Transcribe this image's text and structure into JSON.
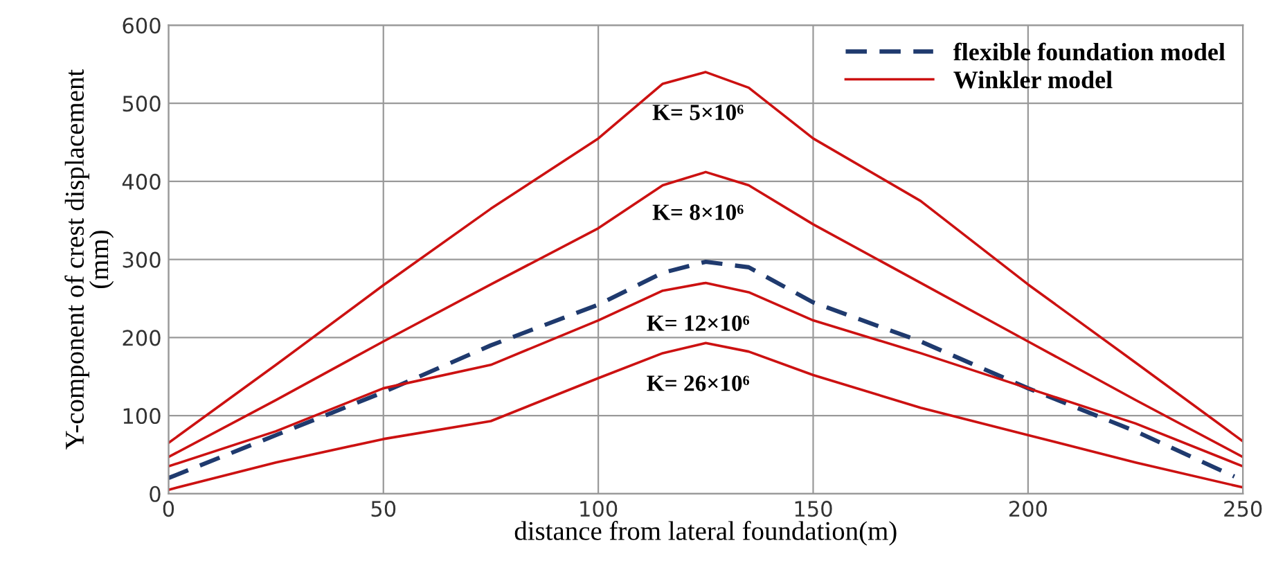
{
  "chart_data": {
    "type": "line",
    "xlabel": "distance from lateral foundation(m)",
    "ylabel": "Y-component of crest displacement\n(mm)",
    "xlim": [
      0,
      250
    ],
    "xticks": [
      0,
      50,
      100,
      150,
      200,
      250
    ],
    "ylim": [
      0,
      600
    ],
    "yticks": [
      0,
      100,
      200,
      300,
      400,
      500,
      600
    ],
    "grid": true,
    "legend": "top right",
    "series": [
      {
        "name": "flexible foundation model",
        "color": "#1f3a6e",
        "line_style": "dashed",
        "x": [
          0,
          25,
          50,
          75,
          100,
          115,
          125,
          135,
          150,
          175,
          200,
          225,
          248
        ],
        "values": [
          20,
          75,
          130,
          190,
          242,
          283,
          297,
          290,
          245,
          195,
          135,
          80,
          22
        ]
      },
      {
        "name": "Winkler model",
        "color": "#cc1111",
        "line_style": "solid",
        "x": [
          0,
          25,
          50,
          75,
          100,
          115,
          125,
          135,
          150,
          175,
          200,
          225,
          250
        ],
        "values": [
          65,
          165,
          267,
          365,
          455,
          525,
          540,
          520,
          455,
          375,
          268,
          168,
          67
        ]
      },
      {
        "color": "#cc1111",
        "line_style": "solid",
        "x": [
          0,
          25,
          50,
          75,
          100,
          115,
          125,
          135,
          150,
          175,
          200,
          225,
          250
        ],
        "values": [
          47,
          120,
          195,
          268,
          340,
          395,
          412,
          395,
          345,
          270,
          195,
          120,
          47
        ]
      },
      {
        "color": "#cc1111",
        "line_style": "solid",
        "x": [
          0,
          25,
          50,
          75,
          100,
          115,
          125,
          135,
          150,
          175,
          200,
          225,
          250
        ],
        "values": [
          35,
          80,
          135,
          165,
          222,
          260,
          270,
          258,
          222,
          180,
          135,
          90,
          35
        ]
      },
      {
        "color": "#cc1111",
        "line_style": "solid",
        "x": [
          0,
          25,
          50,
          75,
          100,
          115,
          125,
          135,
          150,
          175,
          200,
          225,
          250
        ],
        "values": [
          5,
          40,
          70,
          93,
          148,
          180,
          193,
          182,
          152,
          110,
          75,
          40,
          8
        ]
      }
    ],
    "annotations": [
      "K= 5×10⁶",
      "K= 8×10⁶",
      "K= 12×10⁶",
      "K= 26×10⁶"
    ]
  }
}
